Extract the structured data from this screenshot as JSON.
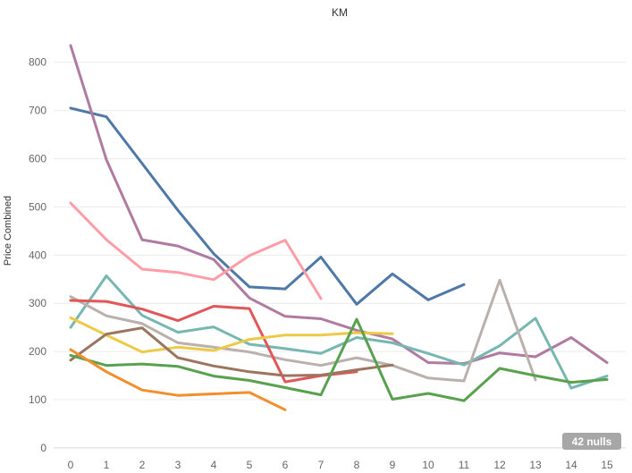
{
  "chart_data": {
    "type": "line",
    "title": "KM",
    "xlabel": "",
    "ylabel": "Price Combined",
    "xlim": [
      -0.4,
      15.4
    ],
    "ylim": [
      -15,
      870
    ],
    "x_ticks": [
      "0",
      "1",
      "2",
      "3",
      "4",
      "5",
      "6",
      "7",
      "8",
      "9",
      "10",
      "11",
      "12",
      "13",
      "14",
      "15"
    ],
    "y_ticks": [
      "0",
      "100",
      "200",
      "300",
      "400",
      "500",
      "600",
      "700",
      "800"
    ],
    "grid": true,
    "null_badge": "42 nulls",
    "series": [
      {
        "color": "#4e79a7",
        "points": [
          [
            0,
            705
          ],
          [
            1,
            687
          ],
          [
            2,
            590
          ],
          [
            3,
            493
          ],
          [
            4,
            403
          ],
          [
            5,
            334
          ],
          [
            6,
            330
          ],
          [
            7,
            396
          ],
          [
            8,
            298
          ],
          [
            9,
            361
          ],
          [
            10,
            307
          ],
          [
            11,
            339
          ]
        ]
      },
      {
        "color": "#b07aa1",
        "points": [
          [
            0,
            835
          ],
          [
            1,
            598
          ],
          [
            2,
            432
          ],
          [
            3,
            419
          ],
          [
            4,
            391
          ],
          [
            5,
            311
          ],
          [
            6,
            273
          ],
          [
            7,
            268
          ],
          [
            8,
            244
          ],
          [
            9,
            226
          ],
          [
            10,
            177
          ],
          [
            11,
            175
          ],
          [
            12,
            197
          ],
          [
            13,
            189
          ],
          [
            14,
            229
          ],
          [
            15,
            177
          ]
        ]
      },
      {
        "color": "#ff9da7",
        "points": [
          [
            0,
            508
          ],
          [
            1,
            432
          ],
          [
            2,
            371
          ],
          [
            3,
            364
          ],
          [
            4,
            349
          ],
          [
            5,
            399
          ],
          [
            6,
            431
          ],
          [
            7,
            310
          ]
        ]
      },
      {
        "color": "#76b7b2",
        "points": [
          [
            0,
            250
          ],
          [
            1,
            357
          ],
          [
            2,
            275
          ],
          [
            3,
            240
          ],
          [
            4,
            251
          ],
          [
            5,
            215
          ],
          [
            6,
            206
          ],
          [
            7,
            196
          ],
          [
            8,
            229
          ],
          [
            9,
            218
          ],
          [
            10,
            196
          ],
          [
            11,
            172
          ],
          [
            12,
            212
          ],
          [
            13,
            269
          ],
          [
            14,
            124
          ],
          [
            15,
            149
          ]
        ]
      },
      {
        "color": "#bab0ac",
        "points": [
          [
            0,
            314
          ],
          [
            1,
            274
          ],
          [
            2,
            258
          ],
          [
            3,
            218
          ],
          [
            4,
            209
          ],
          [
            5,
            199
          ],
          [
            6,
            183
          ],
          [
            7,
            171
          ],
          [
            8,
            187
          ],
          [
            9,
            171
          ],
          [
            10,
            145
          ],
          [
            11,
            139
          ],
          [
            12,
            348
          ],
          [
            13,
            141
          ]
        ]
      },
      {
        "color": "#e15759",
        "points": [
          [
            0,
            306
          ],
          [
            1,
            304
          ],
          [
            2,
            288
          ],
          [
            3,
            264
          ],
          [
            4,
            294
          ],
          [
            5,
            289
          ],
          [
            6,
            137
          ],
          [
            7,
            150
          ],
          [
            8,
            158
          ]
        ]
      },
      {
        "color": "#edc948",
        "points": [
          [
            0,
            270
          ],
          [
            1,
            234
          ],
          [
            2,
            199
          ],
          [
            3,
            209
          ],
          [
            4,
            202
          ],
          [
            5,
            225
          ],
          [
            6,
            234
          ],
          [
            7,
            234
          ],
          [
            8,
            239
          ],
          [
            9,
            237
          ]
        ]
      },
      {
        "color": "#9c755f",
        "points": [
          [
            0,
            182
          ],
          [
            1,
            236
          ],
          [
            2,
            249
          ],
          [
            3,
            187
          ],
          [
            4,
            170
          ],
          [
            5,
            158
          ],
          [
            6,
            150
          ],
          [
            7,
            151
          ],
          [
            8,
            162
          ],
          [
            9,
            172
          ]
        ]
      },
      {
        "color": "#59a14f",
        "points": [
          [
            0,
            192
          ],
          [
            1,
            171
          ],
          [
            2,
            174
          ],
          [
            3,
            169
          ],
          [
            4,
            149
          ],
          [
            5,
            140
          ],
          [
            6,
            125
          ],
          [
            7,
            110
          ],
          [
            8,
            267
          ],
          [
            9,
            101
          ],
          [
            10,
            113
          ],
          [
            11,
            98
          ],
          [
            12,
            165
          ],
          [
            13,
            150
          ],
          [
            14,
            136
          ],
          [
            15,
            142
          ]
        ]
      },
      {
        "color": "#f28e2b",
        "points": [
          [
            0,
            204
          ],
          [
            1,
            158
          ],
          [
            2,
            120
          ],
          [
            3,
            109
          ],
          [
            4,
            112
          ],
          [
            5,
            115
          ],
          [
            6,
            79
          ]
        ]
      }
    ]
  }
}
